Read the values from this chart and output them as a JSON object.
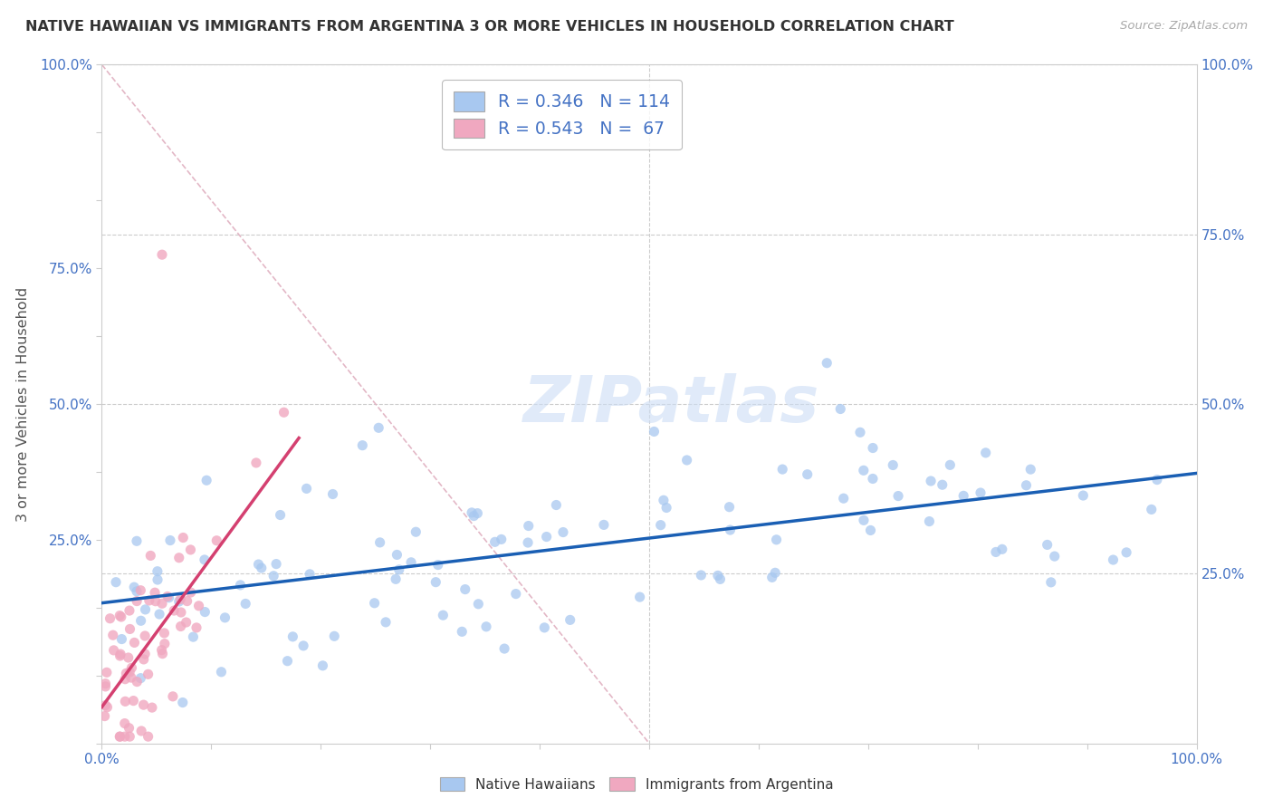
{
  "title": "NATIVE HAWAIIAN VS IMMIGRANTS FROM ARGENTINA 3 OR MORE VEHICLES IN HOUSEHOLD CORRELATION CHART",
  "source": "Source: ZipAtlas.com",
  "ylabel": "3 or more Vehicles in Household",
  "xmin": 0.0,
  "xmax": 1.0,
  "ymin": 0.0,
  "ymax": 1.0,
  "blue_R": 0.346,
  "blue_N": 114,
  "pink_R": 0.543,
  "pink_N": 67,
  "blue_color": "#a8c8f0",
  "pink_color": "#f0a8c0",
  "blue_line_color": "#1a5fb4",
  "pink_line_color": "#d44070",
  "diagonal_color": "#e0b0c0",
  "watermark": "ZIPatlas",
  "legend_label_blue": "Native Hawaiians",
  "legend_label_pink": "Immigrants from Argentina"
}
